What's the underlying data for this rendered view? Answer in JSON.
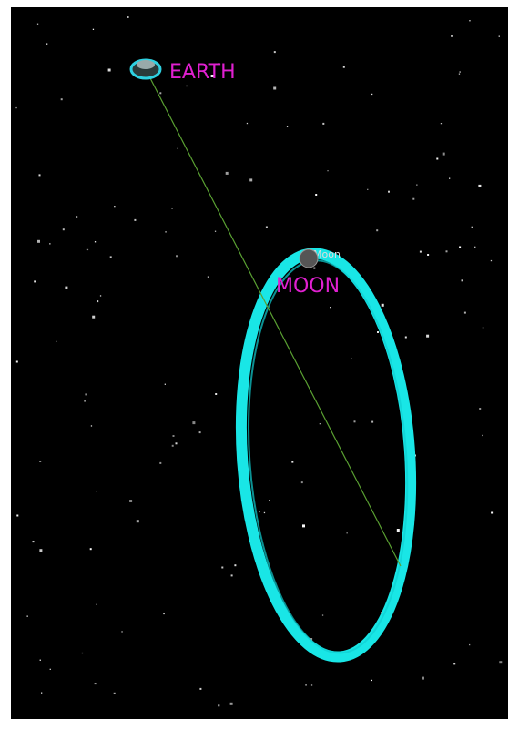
{
  "labels": {
    "earth": "EARTH",
    "moon": "MOON",
    "moon_tag": "Moon"
  }
}
